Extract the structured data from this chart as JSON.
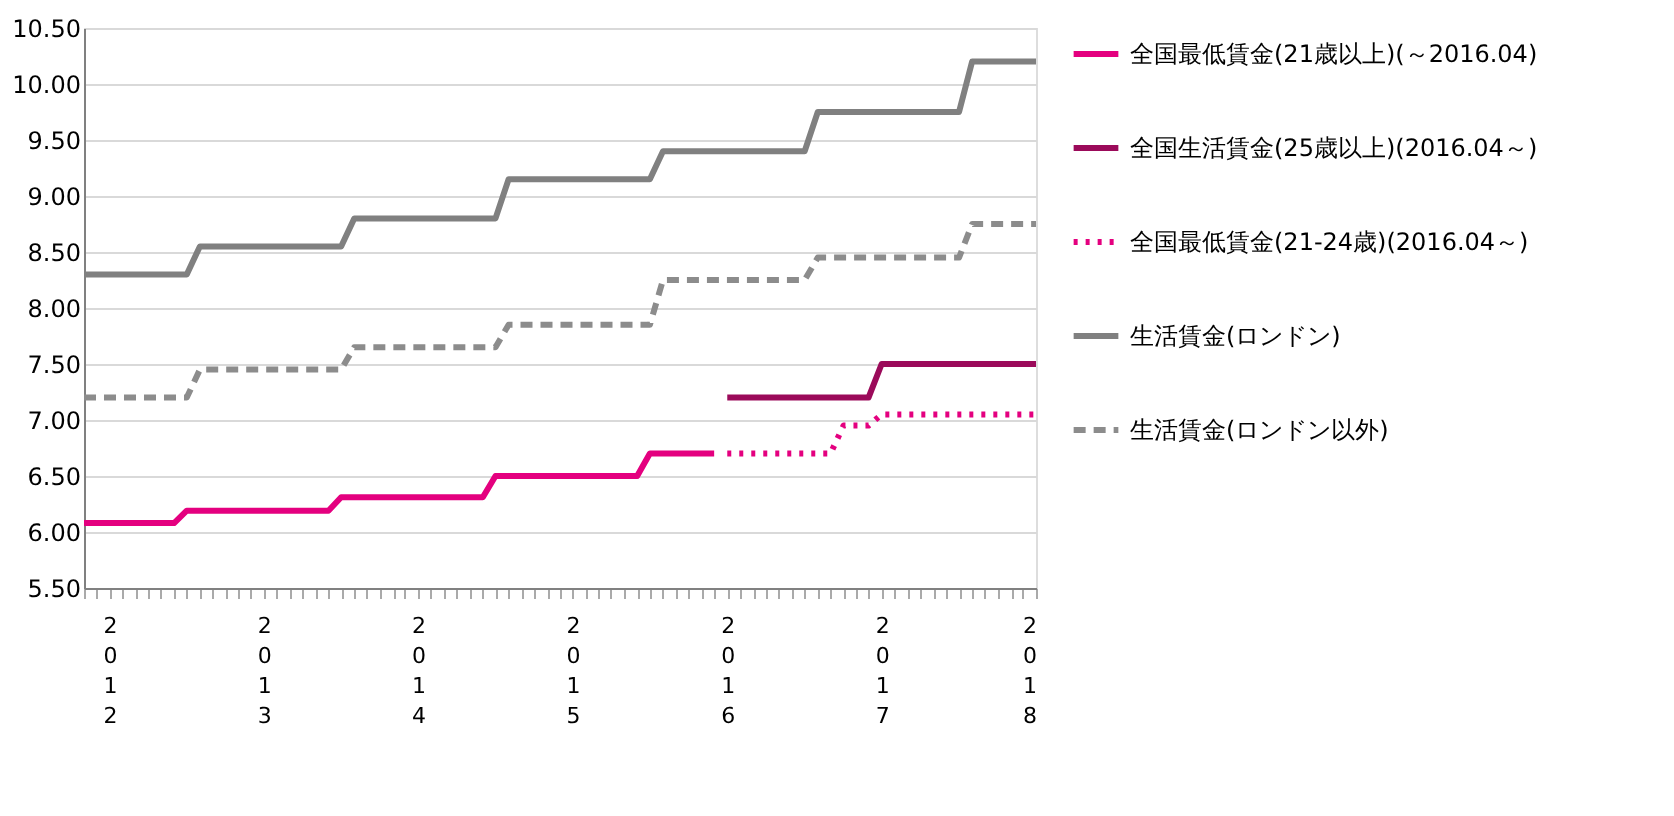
{
  "chart_data": {
    "type": "line",
    "xlim": [
      "2012-02",
      "2018-04"
    ],
    "xticks": [
      {
        "value": "2012-02",
        "label": null
      },
      {
        "value": "2012-03",
        "label": null
      },
      {
        "value": "2012-04",
        "label": "2012"
      },
      {
        "value": "2012-05",
        "label": null
      },
      {
        "value": "2012-06",
        "label": null
      },
      {
        "value": "2012-07",
        "label": null
      },
      {
        "value": "2012-08",
        "label": null
      },
      {
        "value": "2012-09",
        "label": null
      },
      {
        "value": "2012-10",
        "label": null
      },
      {
        "value": "2012-11",
        "label": null
      },
      {
        "value": "2012-12",
        "label": null
      },
      {
        "value": "2013-01",
        "label": null
      },
      {
        "value": "2013-02",
        "label": null
      },
      {
        "value": "2013-03",
        "label": null
      },
      {
        "value": "2013-04",
        "label": "2013"
      },
      {
        "value": "2013-05",
        "label": null
      },
      {
        "value": "2013-06",
        "label": null
      },
      {
        "value": "2013-07",
        "label": null
      },
      {
        "value": "2013-08",
        "label": null
      },
      {
        "value": "2013-09",
        "label": null
      },
      {
        "value": "2013-10",
        "label": null
      },
      {
        "value": "2013-11",
        "label": null
      },
      {
        "value": "2013-12",
        "label": null
      },
      {
        "value": "2014-01",
        "label": null
      },
      {
        "value": "2014-02",
        "label": null
      },
      {
        "value": "2014-03",
        "label": null
      },
      {
        "value": "2014-04",
        "label": "2014"
      },
      {
        "value": "2014-05",
        "label": null
      },
      {
        "value": "2014-06",
        "label": null
      },
      {
        "value": "2014-07",
        "label": null
      },
      {
        "value": "2014-08",
        "label": null
      },
      {
        "value": "2014-09",
        "label": null
      },
      {
        "value": "2014-10",
        "label": null
      },
      {
        "value": "2014-11",
        "label": null
      },
      {
        "value": "2014-12",
        "label": null
      },
      {
        "value": "2015-01",
        "label": null
      },
      {
        "value": "2015-02",
        "label": null
      },
      {
        "value": "2015-03",
        "label": null
      },
      {
        "value": "2015-04",
        "label": "2015"
      },
      {
        "value": "2015-05",
        "label": null
      },
      {
        "value": "2015-06",
        "label": null
      },
      {
        "value": "2015-07",
        "label": null
      },
      {
        "value": "2015-08",
        "label": null
      },
      {
        "value": "2015-09",
        "label": null
      },
      {
        "value": "2015-10",
        "label": null
      },
      {
        "value": "2015-11",
        "label": null
      },
      {
        "value": "2015-12",
        "label": null
      },
      {
        "value": "2016-01",
        "label": null
      },
      {
        "value": "2016-02",
        "label": null
      },
      {
        "value": "2016-03",
        "label": null
      },
      {
        "value": "2016-04",
        "label": "2016"
      },
      {
        "value": "2016-05",
        "label": null
      },
      {
        "value": "2016-06",
        "label": null
      },
      {
        "value": "2016-07",
        "label": null
      },
      {
        "value": "2016-08",
        "label": null
      },
      {
        "value": "2016-09",
        "label": null
      },
      {
        "value": "2016-10",
        "label": null
      },
      {
        "value": "2016-11",
        "label": null
      },
      {
        "value": "2016-12",
        "label": null
      },
      {
        "value": "2017-01",
        "label": null
      },
      {
        "value": "2017-02",
        "label": null
      },
      {
        "value": "2017-03",
        "label": null
      },
      {
        "value": "2017-04",
        "label": "2017"
      },
      {
        "value": "2017-05",
        "label": null
      },
      {
        "value": "2017-06",
        "label": null
      },
      {
        "value": "2017-07",
        "label": null
      },
      {
        "value": "2017-08",
        "label": null
      },
      {
        "value": "2017-09",
        "label": null
      },
      {
        "value": "2017-10",
        "label": null
      },
      {
        "value": "2017-11",
        "label": null
      },
      {
        "value": "2017-12",
        "label": null
      },
      {
        "value": "2018-01",
        "label": null
      },
      {
        "value": "2018-02",
        "label": null
      },
      {
        "value": "2018-03",
        "label": null
      },
      {
        "value": "2018-04",
        "label": "2018"
      }
    ],
    "ylim": [
      5.5,
      10.5
    ],
    "yticks": [
      {
        "value": 5.5,
        "label": "5.50"
      },
      {
        "value": 6,
        "label": "6.00"
      },
      {
        "value": 6.5,
        "label": "6.50"
      },
      {
        "value": 7,
        "label": "7.00"
      },
      {
        "value": 7.5,
        "label": "7.50"
      },
      {
        "value": 8,
        "label": "8.00"
      },
      {
        "value": 8.5,
        "label": "8.50"
      },
      {
        "value": 9,
        "label": "9.00"
      },
      {
        "value": 9.5,
        "label": "9.50"
      },
      {
        "value": 10,
        "label": "10.00"
      },
      {
        "value": 10.5,
        "label": "10.50"
      }
    ],
    "grid": "y",
    "legend": "right",
    "series": [
      {
        "name": "全国最低賃金(21歳以上)(～2016.04)",
        "color": "#e4007f",
        "line_style": "solid",
        "x": [
          "2012-02",
          "2012-09",
          "2012-10",
          "2013-09",
          "2013-10",
          "2014-09",
          "2014-10",
          "2015-09",
          "2015-10",
          "2016-03"
        ],
        "values": [
          6.08,
          6.08,
          6.19,
          6.19,
          6.31,
          6.31,
          6.5,
          6.5,
          6.7,
          6.7
        ]
      },
      {
        "name": "全国生活賃金(25歳以上)(2016.04～)",
        "color": "#9b0a5a",
        "line_style": "solid",
        "x": [
          "2016-04",
          "2017-03",
          "2017-04",
          "2018-04"
        ],
        "values": [
          7.2,
          7.2,
          7.5,
          7.5
        ]
      },
      {
        "name": "全国最低賃金(21-24歳)(2016.04～)",
        "color": "#e4007f",
        "line_style": "dotted",
        "x": [
          "2016-04",
          "2016-12",
          "2017-01",
          "2017-03",
          "2017-04",
          "2018-04"
        ],
        "values": [
          6.7,
          6.7,
          6.95,
          6.95,
          7.05,
          7.05
        ]
      },
      {
        "name": "生活賃金(ロンドン)",
        "color": "#808080",
        "line_style": "solid",
        "x": [
          "2012-02",
          "2012-10",
          "2012-11",
          "2013-10",
          "2013-11",
          "2014-10",
          "2014-11",
          "2015-10",
          "2015-11",
          "2016-10",
          "2016-11",
          "2017-10",
          "2017-11",
          "2018-04"
        ],
        "values": [
          8.3,
          8.3,
          8.55,
          8.55,
          8.8,
          8.8,
          9.15,
          9.15,
          9.4,
          9.4,
          9.75,
          9.75,
          10.2,
          10.2
        ]
      },
      {
        "name": "生活賃金(ロンドン以外)",
        "color": "#8c8c8c",
        "line_style": "dashed",
        "x": [
          "2012-02",
          "2012-10",
          "2012-11",
          "2013-10",
          "2013-11",
          "2014-10",
          "2014-11",
          "2015-10",
          "2015-11",
          "2016-10",
          "2016-11",
          "2017-10",
          "2017-11",
          "2018-04"
        ],
        "values": [
          7.2,
          7.2,
          7.45,
          7.45,
          7.65,
          7.65,
          7.85,
          7.85,
          8.25,
          8.25,
          8.45,
          8.45,
          8.75,
          8.75
        ]
      }
    ]
  }
}
